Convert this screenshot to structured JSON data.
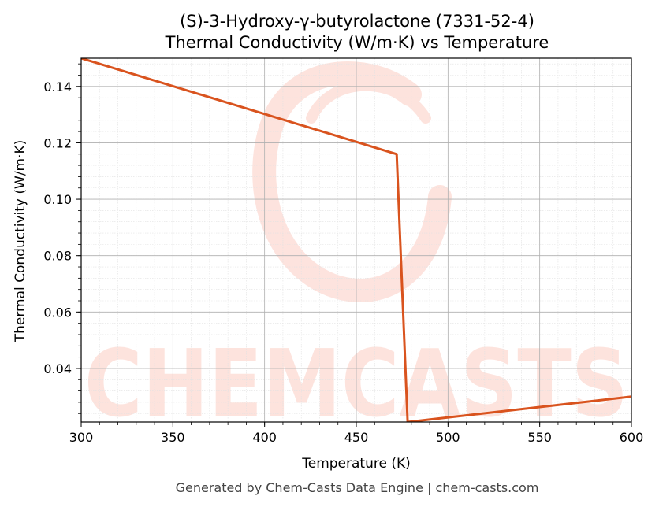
{
  "chart_data": {
    "type": "line",
    "title_line1": "(S)-3-Hydroxy-γ-butyrolactone (7331-52-4)",
    "title_line2": "Thermal Conductivity (W/m·K) vs Temperature",
    "xlabel": "Temperature (K)",
    "ylabel": "Thermal Conductivity (W/m·K)",
    "xlim": [
      300,
      600
    ],
    "ylim": [
      0.021,
      0.15
    ],
    "xticks": [
      300,
      350,
      400,
      450,
      500,
      550,
      600
    ],
    "xtick_labels": [
      "300",
      "350",
      "400",
      "450",
      "500",
      "550",
      "600"
    ],
    "yticks": [
      0.04,
      0.06,
      0.08,
      0.1,
      0.12,
      0.14
    ],
    "ytick_labels": [
      "0.04",
      "0.06",
      "0.08",
      "0.10",
      "0.12",
      "0.14"
    ],
    "grid": true,
    "series": [
      {
        "color": "#d9531e",
        "x": [
          300,
          472,
          478,
          600
        ],
        "y": [
          0.15,
          0.116,
          0.021,
          0.03
        ]
      }
    ]
  },
  "footer": "Generated by Chem-Casts Data Engine | chem-casts.com",
  "watermark": {
    "text": "CHEMCASTS",
    "color": "#fde2dc"
  }
}
